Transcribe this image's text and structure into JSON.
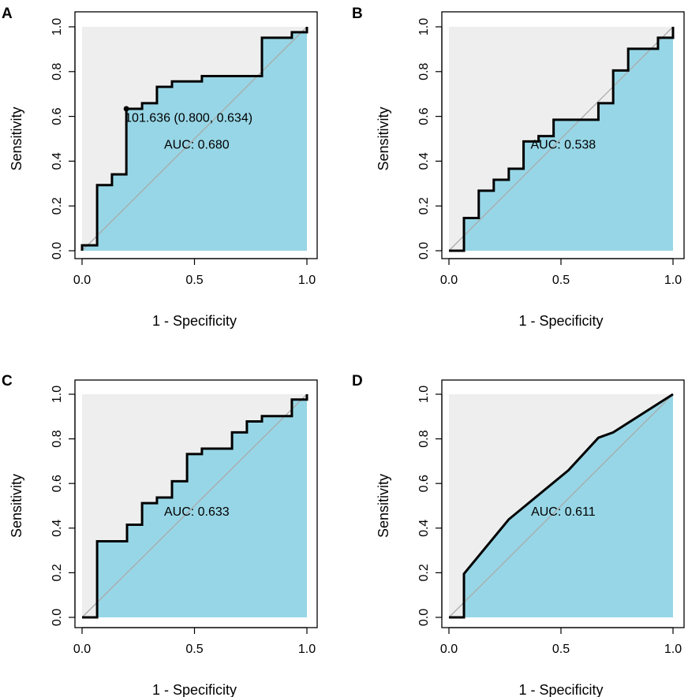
{
  "colors": {
    "background": "#eeeeee",
    "auc_fill": "#97d6e6",
    "roc_line": "#000000",
    "diagonal": "#aaaaaa",
    "frame": "#000000"
  },
  "chart_data": [
    {
      "panel": "A",
      "type": "line",
      "xlabel": "1 - Specificity",
      "ylabel": "Sensitivity",
      "xlim": [
        0,
        1
      ],
      "ylim": [
        0,
        1
      ],
      "xticks": [
        "0.0",
        "0.5",
        "1.0"
      ],
      "yticks": [
        "0.0",
        "0.2",
        "0.4",
        "0.6",
        "0.8",
        "1.0"
      ],
      "auc_label": "AUC: 0.680",
      "auc_pos": [
        0.51,
        0.47
      ],
      "threshold_label": "101.636 (0.800, 0.634)",
      "threshold_point": [
        0.197,
        0.634
      ],
      "threshold_label_pos": [
        0.19,
        0.59
      ],
      "roc": [
        [
          0,
          0
        ],
        [
          0,
          0.024
        ],
        [
          0.067,
          0.024
        ],
        [
          0.067,
          0.293
        ],
        [
          0.133,
          0.293
        ],
        [
          0.133,
          0.341
        ],
        [
          0.197,
          0.341
        ],
        [
          0.197,
          0.634
        ],
        [
          0.267,
          0.634
        ],
        [
          0.267,
          0.659
        ],
        [
          0.333,
          0.659
        ],
        [
          0.333,
          0.732
        ],
        [
          0.4,
          0.732
        ],
        [
          0.4,
          0.756
        ],
        [
          0.533,
          0.756
        ],
        [
          0.533,
          0.78
        ],
        [
          0.8,
          0.78
        ],
        [
          0.8,
          0.951
        ],
        [
          0.933,
          0.951
        ],
        [
          0.933,
          0.976
        ],
        [
          1,
          0.976
        ],
        [
          1,
          1
        ]
      ]
    },
    {
      "panel": "B",
      "type": "line",
      "xlabel": "1 - Specificity",
      "ylabel": "Sensitivity",
      "xlim": [
        0,
        1
      ],
      "ylim": [
        0,
        1
      ],
      "xticks": [
        "0.0",
        "0.5",
        "1.0"
      ],
      "yticks": [
        "0.0",
        "0.2",
        "0.4",
        "0.6",
        "0.8",
        "1.0"
      ],
      "auc_label": "AUC: 0.538",
      "auc_pos": [
        0.51,
        0.47
      ],
      "roc": [
        [
          0,
          0
        ],
        [
          0.067,
          0
        ],
        [
          0.067,
          0.146
        ],
        [
          0.133,
          0.146
        ],
        [
          0.133,
          0.268
        ],
        [
          0.2,
          0.268
        ],
        [
          0.2,
          0.317
        ],
        [
          0.267,
          0.317
        ],
        [
          0.267,
          0.366
        ],
        [
          0.333,
          0.366
        ],
        [
          0.333,
          0.488
        ],
        [
          0.4,
          0.488
        ],
        [
          0.4,
          0.512
        ],
        [
          0.467,
          0.512
        ],
        [
          0.467,
          0.585
        ],
        [
          0.667,
          0.585
        ],
        [
          0.667,
          0.659
        ],
        [
          0.733,
          0.659
        ],
        [
          0.733,
          0.805
        ],
        [
          0.8,
          0.805
        ],
        [
          0.8,
          0.902
        ],
        [
          0.933,
          0.902
        ],
        [
          0.933,
          0.951
        ],
        [
          1,
          0.951
        ],
        [
          1,
          1
        ]
      ]
    },
    {
      "panel": "C",
      "type": "line",
      "xlabel": "1 - Specificity",
      "ylabel": "Sensitivity",
      "xlim": [
        0,
        1
      ],
      "ylim": [
        0,
        1
      ],
      "xticks": [
        "0.0",
        "0.5",
        "1.0"
      ],
      "yticks": [
        "0.0",
        "0.2",
        "0.4",
        "0.6",
        "0.8",
        "1.0"
      ],
      "auc_label": "AUC: 0.633",
      "auc_pos": [
        0.51,
        0.47
      ],
      "roc": [
        [
          0,
          0
        ],
        [
          0.067,
          0
        ],
        [
          0.067,
          0.341
        ],
        [
          0.2,
          0.341
        ],
        [
          0.2,
          0.415
        ],
        [
          0.267,
          0.415
        ],
        [
          0.267,
          0.512
        ],
        [
          0.333,
          0.512
        ],
        [
          0.333,
          0.537
        ],
        [
          0.4,
          0.537
        ],
        [
          0.4,
          0.61
        ],
        [
          0.467,
          0.61
        ],
        [
          0.467,
          0.732
        ],
        [
          0.533,
          0.732
        ],
        [
          0.533,
          0.756
        ],
        [
          0.667,
          0.756
        ],
        [
          0.667,
          0.829
        ],
        [
          0.733,
          0.829
        ],
        [
          0.733,
          0.878
        ],
        [
          0.8,
          0.878
        ],
        [
          0.8,
          0.902
        ],
        [
          0.933,
          0.902
        ],
        [
          0.933,
          0.976
        ],
        [
          1,
          0.976
        ],
        [
          1,
          1
        ]
      ]
    },
    {
      "panel": "D",
      "type": "line",
      "xlabel": "1 - Specificity",
      "ylabel": "Sensitivity",
      "xlim": [
        0,
        1
      ],
      "ylim": [
        0,
        1
      ],
      "xticks": [
        "0.0",
        "0.5",
        "1.0"
      ],
      "yticks": [
        "0.0",
        "0.2",
        "0.4",
        "0.6",
        "0.8",
        "1.0"
      ],
      "auc_label": "AUC: 0.611",
      "auc_pos": [
        0.51,
        0.47
      ],
      "roc": [
        [
          0,
          0
        ],
        [
          0.067,
          0
        ],
        [
          0.067,
          0.195
        ],
        [
          0.267,
          0.439
        ],
        [
          0.533,
          0.659
        ],
        [
          0.667,
          0.805
        ],
        [
          0.733,
          0.829
        ],
        [
          1,
          1
        ]
      ]
    }
  ]
}
